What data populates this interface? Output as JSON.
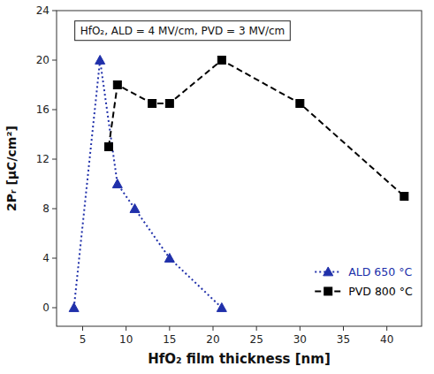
{
  "chart_data": {
    "type": "line",
    "x_label": "HfO₂ film thickness [nm]",
    "y_label": "2Pᵣ [μC/cm²]",
    "annotation": "HfO₂, ALD = 4 MV/cm, PVD = 3 MV/cm",
    "series": [
      {
        "name": "ALD 650 °C",
        "color": "#2030aa",
        "marker": "triangle",
        "line_style": "dotted",
        "x": [
          4,
          7,
          9,
          11,
          15,
          21
        ],
        "values": [
          0,
          20,
          10,
          8,
          4,
          0
        ]
      },
      {
        "name": "PVD 800 °C",
        "color": "#000000",
        "marker": "square",
        "line_style": "dashed",
        "x": [
          8,
          9,
          13,
          15,
          21,
          30,
          42
        ],
        "values": [
          13,
          18,
          16.5,
          16.5,
          20,
          16.5,
          9
        ]
      }
    ],
    "xlim": [
      2,
      44
    ],
    "ylim": [
      -1.5,
      24
    ],
    "xticks": [
      5,
      10,
      15,
      20,
      25,
      30,
      35,
      40
    ],
    "yticks": [
      0,
      4,
      8,
      12,
      16,
      20,
      24
    ],
    "grid": false,
    "legend": "lower right"
  }
}
